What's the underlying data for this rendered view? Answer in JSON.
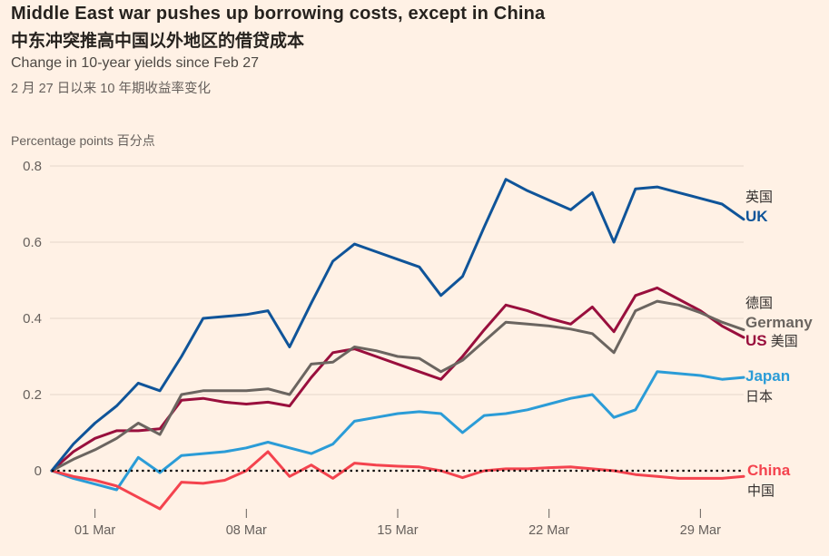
{
  "header": {
    "title_en": "Middle East war pushes up borrowing costs, except in China",
    "title_zh": "中东冲突推高中国以外地区的借贷成本",
    "subtitle_en": "Change in 10-year yields since Feb 27",
    "subtitle_zh": "2 月 27 日以来 10 年期收益率变化",
    "unit_label": "Percentage points 百分点"
  },
  "colors": {
    "background": "#fff1e5",
    "grid": "#e6d8ca",
    "zero_line": "#000000",
    "axis_text": "#66605c",
    "dark_text": "#33302e",
    "uk": "#0f5499",
    "germany": "#6b6560",
    "us": "#990f3d",
    "japan": "#2b9cd7",
    "china": "#f4434e"
  },
  "chart_data": {
    "type": "line",
    "title": "Change in 10-year yields since Feb 27",
    "ylabel": "Percentage points",
    "ylim": [
      -0.13,
      0.86
    ],
    "grid": true,
    "zero_line": "dotted",
    "legend_position": "right",
    "x": [
      "Feb 27",
      "Feb 28",
      "Mar 1",
      "Mar 2",
      "Mar 3",
      "Mar 4",
      "Mar 5",
      "Mar 6",
      "Mar 7",
      "Mar 8",
      "Mar 9",
      "Mar 10",
      "Mar 11",
      "Mar 12",
      "Mar 13",
      "Mar 14",
      "Mar 15",
      "Mar 16",
      "Mar 17",
      "Mar 18",
      "Mar 19",
      "Mar 20",
      "Mar 21",
      "Mar 22",
      "Mar 23",
      "Mar 24",
      "Mar 25",
      "Mar 26",
      "Mar 27",
      "Mar 28",
      "Mar 29",
      "Mar 30",
      "Mar 31"
    ],
    "x_ticks": [
      {
        "label": "01 Mar",
        "index": 2
      },
      {
        "label": "08 Mar",
        "index": 9
      },
      {
        "label": "15 Mar",
        "index": 16
      },
      {
        "label": "22 Mar",
        "index": 23
      },
      {
        "label": "29 Mar",
        "index": 30
      }
    ],
    "y_ticks": [
      {
        "label": "0.8",
        "value": 0.8
      },
      {
        "label": "0.6",
        "value": 0.6
      },
      {
        "label": "0.4",
        "value": 0.4
      },
      {
        "label": "0.2",
        "value": 0.2
      },
      {
        "label": "0",
        "value": 0
      }
    ],
    "series": [
      {
        "name": "Japan",
        "name_zh": "日本",
        "color": "#2b9cd7",
        "values": [
          0,
          -0.02,
          -0.035,
          -0.05,
          0.035,
          -0.005,
          0.04,
          0.045,
          0.05,
          0.06,
          0.075,
          0.06,
          0.045,
          0.07,
          0.13,
          0.14,
          0.15,
          0.155,
          0.15,
          0.1,
          0.145,
          0.15,
          0.16,
          0.175,
          0.19,
          0.2,
          0.14,
          0.16,
          0.26,
          0.255,
          0.25,
          0.24,
          0.245
        ]
      },
      {
        "name": "China",
        "name_zh": "中国",
        "color": "#f4434e",
        "values": [
          0,
          -0.015,
          -0.025,
          -0.04,
          -0.07,
          -0.1,
          -0.03,
          -0.033,
          -0.025,
          0.0,
          0.05,
          -0.015,
          0.015,
          -0.02,
          0.02,
          0.015,
          0.012,
          0.01,
          0.0,
          -0.018,
          0.0,
          0.005,
          0.005,
          0.008,
          0.01,
          0.005,
          0.0,
          -0.01,
          -0.015,
          -0.02,
          -0.02,
          -0.02,
          -0.015
        ]
      },
      {
        "name": "US",
        "name_zh": "美国",
        "color": "#990f3d",
        "values": [
          0,
          0.05,
          0.085,
          0.105,
          0.105,
          0.11,
          0.185,
          0.19,
          0.18,
          0.175,
          0.18,
          0.17,
          0.245,
          0.31,
          0.32,
          0.3,
          0.28,
          0.26,
          0.24,
          0.3,
          0.37,
          0.435,
          0.42,
          0.4,
          0.385,
          0.43,
          0.365,
          0.46,
          0.48,
          0.45,
          0.42,
          0.38,
          0.35
        ]
      },
      {
        "name": "Germany",
        "name_zh": "德国",
        "color": "#6b6560",
        "values": [
          0,
          0.03,
          0.055,
          0.085,
          0.125,
          0.095,
          0.2,
          0.21,
          0.21,
          0.21,
          0.215,
          0.2,
          0.28,
          0.285,
          0.325,
          0.315,
          0.3,
          0.295,
          0.26,
          0.29,
          0.34,
          0.39,
          0.385,
          0.38,
          0.372,
          0.36,
          0.31,
          0.42,
          0.445,
          0.435,
          0.415,
          0.39,
          0.37
        ]
      },
      {
        "name": "UK",
        "name_zh": "英国",
        "color": "#0f5499",
        "values": [
          0,
          0.07,
          0.125,
          0.17,
          0.23,
          0.21,
          0.3,
          0.4,
          0.405,
          0.41,
          0.42,
          0.325,
          0.44,
          0.55,
          0.595,
          0.575,
          0.555,
          0.535,
          0.46,
          0.51,
          0.64,
          0.765,
          0.735,
          0.71,
          0.685,
          0.73,
          0.6,
          0.74,
          0.745,
          0.73,
          0.715,
          0.7,
          0.66
        ]
      }
    ]
  },
  "legend": {
    "uk_zh": "英国",
    "uk_en": "UK",
    "germany_zh": "德国",
    "germany_en": "Germany",
    "us_en": "US",
    "us_zh": " 美国",
    "japan_en": "Japan",
    "japan_zh": "日本",
    "china_en": "China",
    "china_zh": "中国"
  }
}
